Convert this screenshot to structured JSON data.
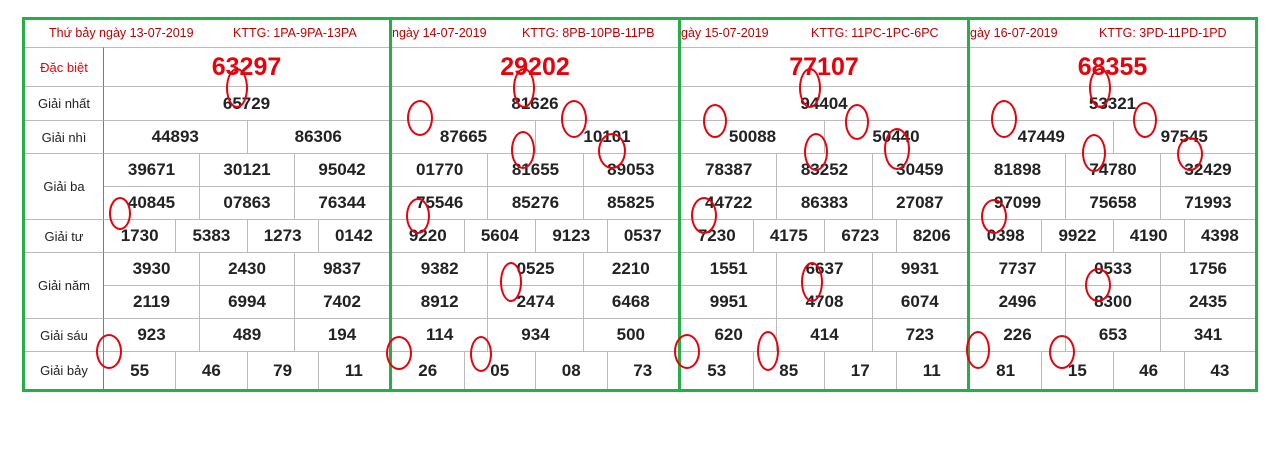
{
  "labels": [
    "Đặc biệt",
    "Giải nhất",
    "Giải nhì",
    "Giải ba",
    "Giải tư",
    "Giải năm",
    "Giải sáu",
    "Giải bảy"
  ],
  "panels": [
    {
      "date": "Thứ bảy ngày 13-07-2019",
      "kttg": "KTTG: 1PA-9PA-13PA",
      "special": "63297",
      "first": "65729",
      "second": [
        "44893",
        "86306"
      ],
      "third": [
        "39671",
        "30121",
        "95042",
        "40845",
        "07863",
        "76344"
      ],
      "fourth": [
        "1730",
        "5383",
        "1273",
        "0142"
      ],
      "fifth": [
        "3930",
        "2430",
        "9837",
        "2119",
        "6994",
        "7402"
      ],
      "sixth": [
        "923",
        "489",
        "194"
      ],
      "seventh": [
        "55",
        "46",
        "79",
        "11"
      ]
    },
    {
      "date": "ngày 14-07-2019",
      "kttg": "KTTG: 8PB-10PB-11PB",
      "special": "29202",
      "first": "81626",
      "second": [
        "87665",
        "10101"
      ],
      "third": [
        "01770",
        "81655",
        "89053",
        "75546",
        "85276",
        "85825"
      ],
      "fourth": [
        "9220",
        "5604",
        "9123",
        "0537"
      ],
      "fifth": [
        "9382",
        "0525",
        "2210",
        "8912",
        "2474",
        "6468"
      ],
      "sixth": [
        "114",
        "934",
        "500"
      ],
      "seventh": [
        "26",
        "05",
        "08",
        "73"
      ]
    },
    {
      "date": "gày 15-07-2019",
      "kttg": "KTTG: 11PC-1PC-6PC",
      "special": "77107",
      "first": "94404",
      "second": [
        "50088",
        "50440"
      ],
      "third": [
        "78387",
        "83252",
        "30459",
        "44722",
        "86383",
        "27087"
      ],
      "fourth": [
        "7230",
        "4175",
        "6723",
        "8206"
      ],
      "fifth": [
        "1551",
        "6637",
        "9931",
        "9951",
        "4708",
        "6074"
      ],
      "sixth": [
        "620",
        "414",
        "723"
      ],
      "seventh": [
        "53",
        "85",
        "17",
        "11"
      ]
    },
    {
      "date": "gày 16-07-2019",
      "kttg": "KTTG: 3PD-11PD-1PD",
      "special": "68355",
      "first": "53321",
      "second": [
        "47449",
        "97545"
      ],
      "third": [
        "81898",
        "74780",
        "32429",
        "97099",
        "75658",
        "71993"
      ],
      "fourth": [
        "0398",
        "9922",
        "4190",
        "4398"
      ],
      "fifth": [
        "7737",
        "0533",
        "1756",
        "2496",
        "8300",
        "2435"
      ],
      "sixth": [
        "226",
        "653",
        "341"
      ],
      "seventh": [
        "81",
        "15",
        "46",
        "43"
      ]
    }
  ]
}
